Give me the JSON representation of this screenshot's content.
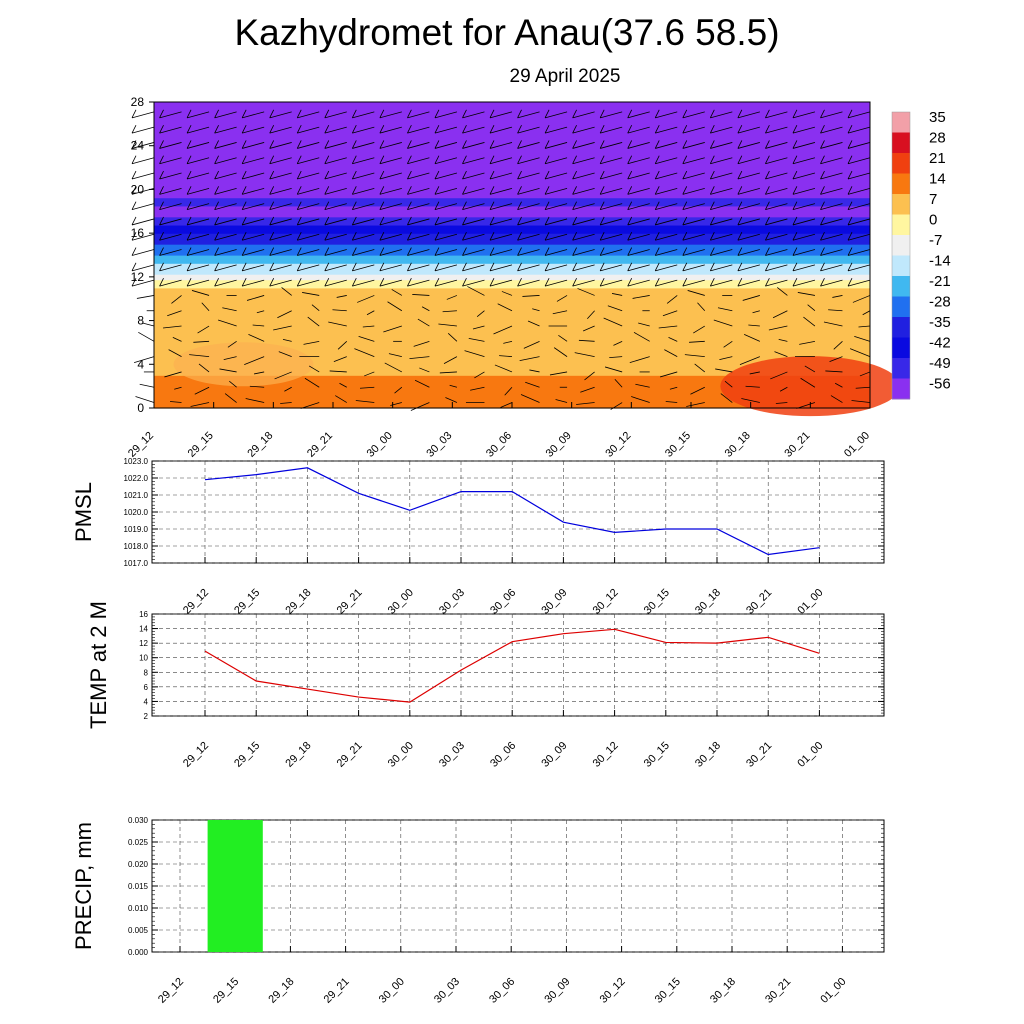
{
  "title": "Kazhydromet for Anau(37.6 58.5)",
  "subtitle": "29 April 2025",
  "time_labels": [
    "29_12",
    "29_15",
    "29_18",
    "29_21",
    "30_00",
    "30_03",
    "30_06",
    "30_09",
    "30_12",
    "30_15",
    "30_18",
    "30_21",
    "01_00"
  ],
  "chart_data": [
    {
      "type": "heatmap",
      "ylim": [
        0,
        28
      ],
      "yticks": [
        0,
        4,
        8,
        12,
        16,
        20,
        24,
        28
      ],
      "colorbar": {
        "labels": [
          "35",
          "28",
          "21",
          "14",
          "7",
          "0",
          "-7",
          "-14",
          "-21",
          "-28",
          "-35",
          "-42",
          "-49",
          "-56"
        ],
        "colors": [
          "#f2a0a8",
          "#d81020",
          "#f04010",
          "#f87810",
          "#fcc050",
          "#fff6a0",
          "#f0f0f0",
          "#c0e8fc",
          "#40b8f0",
          "#2070f0",
          "#2020e0",
          "#0a0ae0",
          "#3828e8",
          "#8a30f0"
        ]
      },
      "profile": [
        {
          "height": 0,
          "temp": 12
        },
        {
          "height": 4,
          "temp": 10
        },
        {
          "height": 8,
          "temp": 8
        },
        {
          "height": 11,
          "temp": 4
        },
        {
          "height": 12.5,
          "temp": -12
        },
        {
          "height": 14,
          "temp": -24
        },
        {
          "height": 16,
          "temp": -38
        },
        {
          "height": 17.8,
          "temp": -56
        },
        {
          "height": 19,
          "temp": -50
        },
        {
          "height": 20,
          "temp": -60
        },
        {
          "height": 28,
          "temp": -62
        }
      ],
      "warm_core": {
        "time_index": 11,
        "height": 2,
        "temp": 20
      }
    },
    {
      "type": "line",
      "ylabel": "PMSL",
      "ylim": [
        1017.0,
        1023.0
      ],
      "yticks": [
        "1017.0",
        "1018.0",
        "1019.0",
        "1020.0",
        "1021.0",
        "1022.0",
        "1023.0"
      ],
      "series": [
        {
          "color": "#0000dd",
          "values": [
            1021.9,
            1022.2,
            1022.6,
            1021.1,
            1020.1,
            1021.2,
            1021.2,
            1019.4,
            1018.8,
            1019.0,
            1019.0,
            1017.5,
            1017.9
          ]
        }
      ]
    },
    {
      "type": "line",
      "ylabel": "TEMP at 2 M",
      "ylim": [
        2,
        16
      ],
      "yticks": [
        "2",
        "4",
        "6",
        "8",
        "10",
        "12",
        "14",
        "16"
      ],
      "series": [
        {
          "color": "#dd0000",
          "values": [
            10.9,
            6.8,
            5.7,
            4.6,
            3.9,
            8.3,
            12.2,
            13.3,
            13.9,
            12.1,
            12.0,
            12.8,
            10.6
          ]
        }
      ]
    },
    {
      "type": "bar",
      "ylabel": "PRECIP, mm",
      "ylim": [
        0,
        0.03
      ],
      "yticks": [
        "0.000",
        "0.005",
        "0.010",
        "0.015",
        "0.020",
        "0.025",
        "0.030"
      ],
      "series": [
        {
          "color": "#22ee22",
          "values": [
            0,
            0.03,
            0,
            0,
            0,
            0,
            0,
            0,
            0,
            0,
            0,
            0,
            0
          ]
        }
      ]
    }
  ]
}
